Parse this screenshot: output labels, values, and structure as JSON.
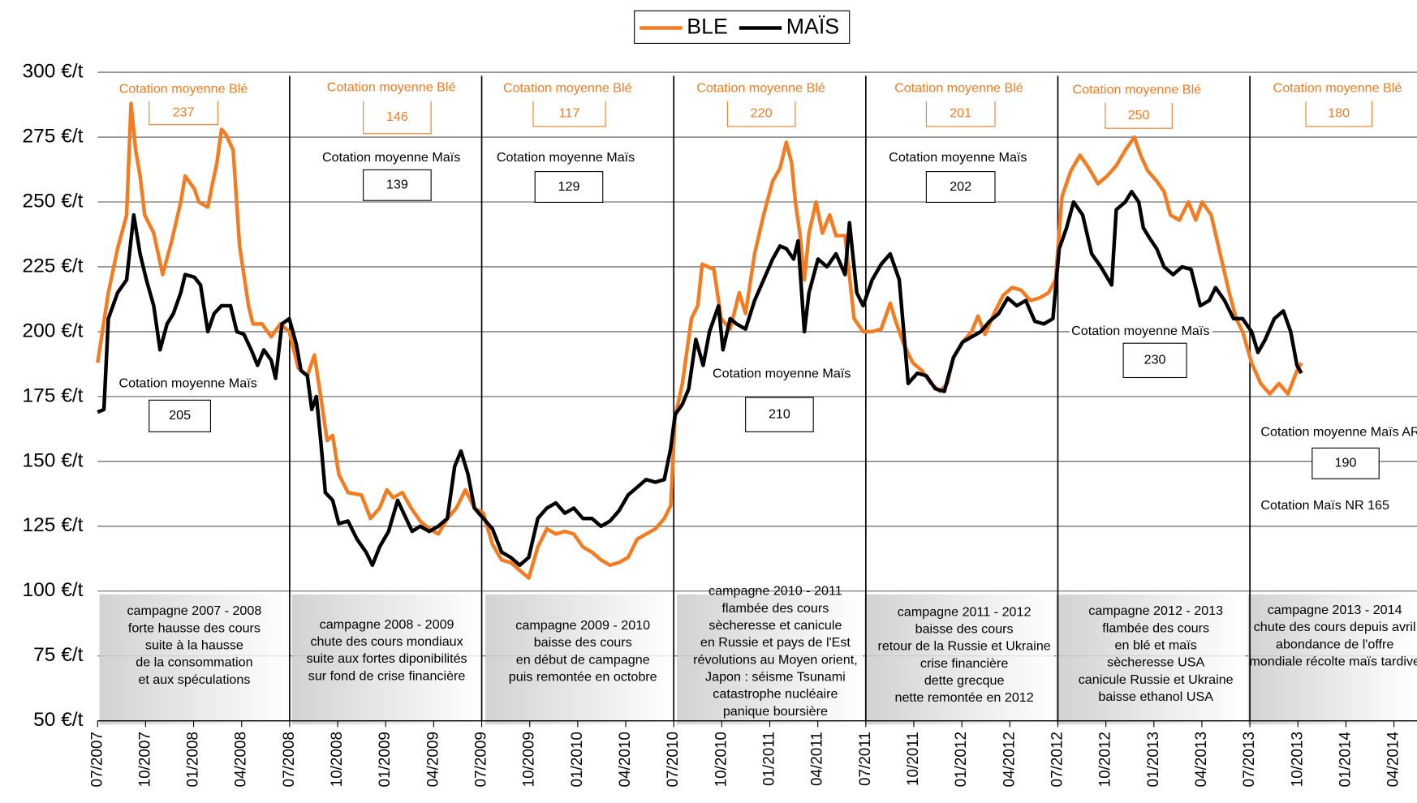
{
  "chart_data": {
    "type": "line",
    "legend": "top",
    "grid": true,
    "xlim": [
      2007.5,
      2014.37
    ],
    "xticks": [
      {
        "value": 2007.5,
        "label": "07/2007"
      },
      {
        "value": 2007.75,
        "label": "10/2007"
      },
      {
        "value": 2008,
        "label": "01/2008"
      },
      {
        "value": 2008.25,
        "label": "04/2008"
      },
      {
        "value": 2008.5,
        "label": "07/2008"
      },
      {
        "value": 2008.75,
        "label": "10/2008"
      },
      {
        "value": 2009,
        "label": "01/2009"
      },
      {
        "value": 2009.25,
        "label": "04/2009"
      },
      {
        "value": 2009.5,
        "label": "07/2009"
      },
      {
        "value": 2009.75,
        "label": "10/2009"
      },
      {
        "value": 2010,
        "label": "01/2010"
      },
      {
        "value": 2010.25,
        "label": "04/2010"
      },
      {
        "value": 2010.5,
        "label": "07/2010"
      },
      {
        "value": 2010.75,
        "label": "10/2010"
      },
      {
        "value": 2011,
        "label": "01/2011"
      },
      {
        "value": 2011.25,
        "label": "04/2011"
      },
      {
        "value": 2011.5,
        "label": "07/2011"
      },
      {
        "value": 2011.75,
        "label": "10/2011"
      },
      {
        "value": 2012,
        "label": "01/2012"
      },
      {
        "value": 2012.25,
        "label": "04/2012"
      },
      {
        "value": 2012.5,
        "label": "07/2012"
      },
      {
        "value": 2012.75,
        "label": "10/2012"
      },
      {
        "value": 2013,
        "label": "01/2013"
      },
      {
        "value": 2013.25,
        "label": "04/2013"
      },
      {
        "value": 2013.5,
        "label": "07/2013"
      },
      {
        "value": 2013.75,
        "label": "10/2013"
      },
      {
        "value": 2014,
        "label": "01/2014"
      },
      {
        "value": 2014.25,
        "label": "04/2014"
      }
    ],
    "ylim": [
      50,
      300
    ],
    "yticks": [
      {
        "value": 50,
        "label": "50 €/t"
      },
      {
        "value": 75,
        "label": "75 €/t"
      },
      {
        "value": 100,
        "label": "100 €/t"
      },
      {
        "value": 125,
        "label": "125 €/t"
      },
      {
        "value": 150,
        "label": "150 €/t"
      },
      {
        "value": 175,
        "label": "175 €/t"
      },
      {
        "value": 200,
        "label": "200 €/t"
      },
      {
        "value": 225,
        "label": "225 €/t"
      },
      {
        "value": 250,
        "label": "250 €/t"
      },
      {
        "value": 275,
        "label": "275 €/t"
      },
      {
        "value": 300,
        "label": "300 €/t"
      }
    ],
    "series": [
      {
        "name": "BLE",
        "color": "#f47b20",
        "x": [
          2007.5,
          2007.556,
          2007.604,
          2007.651,
          2007.674,
          2007.698,
          2007.721,
          2007.745,
          2007.792,
          2007.839,
          2007.886,
          2007.933,
          2007.956,
          2008.004,
          2008.027,
          2008.074,
          2008.098,
          2008.121,
          2008.145,
          2008.168,
          2008.206,
          2008.239,
          2008.286,
          2008.309,
          2008.356,
          2008.404,
          2008.451,
          2008.498,
          2008.545,
          2008.592,
          2008.629,
          2008.662,
          2008.695,
          2008.724,
          2008.756,
          2008.804,
          2008.874,
          2008.921,
          2008.968,
          2009.006,
          2009.039,
          2009.086,
          2009.133,
          2009.18,
          2009.227,
          2009.274,
          2009.321,
          2009.368,
          2009.415,
          2009.462,
          2009.509,
          2009.556,
          2009.604,
          2009.651,
          2009.698,
          2009.745,
          2009.792,
          2009.839,
          2009.886,
          2009.933,
          2009.98,
          2010.027,
          2010.074,
          2010.121,
          2010.168,
          2010.215,
          2010.262,
          2010.309,
          2010.356,
          2010.404,
          2010.451,
          2010.484,
          2010.507,
          2010.545,
          2010.592,
          2010.625,
          2010.648,
          2010.709,
          2010.747,
          2010.794,
          2010.841,
          2010.874,
          2010.921,
          2010.968,
          2011.015,
          2011.053,
          2011.086,
          2011.114,
          2011.133,
          2011.156,
          2011.18,
          2011.204,
          2011.241,
          2011.274,
          2011.312,
          2011.345,
          2011.392,
          2011.439,
          2011.486,
          2011.533,
          2011.58,
          2011.627,
          2011.651,
          2011.698,
          2011.745,
          2011.792,
          2011.839,
          2011.886,
          2011.924,
          2011.956,
          2012.004,
          2012.051,
          2012.084,
          2012.121,
          2012.168,
          2012.215,
          2012.262,
          2012.309,
          2012.356,
          2012.404,
          2012.451,
          2012.488,
          2012.521,
          2012.568,
          2012.615,
          2012.662,
          2012.709,
          2012.756,
          2012.804,
          2012.851,
          2012.898,
          2012.931,
          2012.968,
          2013.015,
          2013.053,
          2013.086,
          2013.133,
          2013.18,
          2013.218,
          2013.251,
          2013.298,
          2013.345,
          2013.392,
          2013.429,
          2013.462,
          2013.509,
          2013.556,
          2013.604,
          2013.651,
          2013.698,
          2013.745,
          2013.768
        ],
        "values": [
          188,
          215,
          232,
          245,
          288,
          270,
          260,
          245,
          238,
          222,
          235,
          250,
          260,
          255,
          250,
          248,
          257,
          265,
          278,
          276,
          270,
          233,
          210,
          203,
          203,
          198,
          203,
          200,
          186,
          183,
          191,
          175,
          158,
          160,
          145,
          138,
          137,
          128,
          132,
          139,
          136,
          138,
          132,
          127,
          124,
          122,
          128,
          132,
          139,
          132,
          130,
          118,
          112,
          111,
          108,
          105,
          117,
          124,
          122,
          123,
          122,
          117,
          115,
          112,
          110,
          111,
          113,
          120,
          122,
          124,
          128,
          133,
          167,
          180,
          205,
          210,
          226,
          224,
          205,
          201,
          215,
          207,
          230,
          245,
          258,
          263,
          273,
          265,
          250,
          238,
          220,
          238,
          250,
          238,
          245,
          237,
          237,
          205,
          200,
          200,
          201,
          211,
          205,
          195,
          188,
          185,
          180,
          177,
          180,
          190,
          196,
          200,
          206,
          199,
          207,
          214,
          217,
          216,
          212,
          213,
          215,
          220,
          252,
          262,
          268,
          263,
          257,
          260,
          264,
          270,
          275,
          268,
          262,
          258,
          254,
          245,
          243,
          250,
          243,
          250,
          245,
          230,
          215,
          205,
          200,
          188,
          180,
          176,
          180,
          176,
          185,
          188
        ]
      },
      {
        "name": "MAÏS",
        "color": "#000000",
        "x": [
          2007.5,
          2007.533,
          2007.556,
          2007.604,
          2007.651,
          2007.688,
          2007.721,
          2007.754,
          2007.792,
          2007.825,
          2007.862,
          2007.895,
          2007.933,
          2007.956,
          2008.004,
          2008.036,
          2008.074,
          2008.107,
          2008.145,
          2008.192,
          2008.225,
          2008.262,
          2008.3,
          2008.333,
          2008.366,
          2008.404,
          2008.427,
          2008.46,
          2008.498,
          2008.535,
          2008.559,
          2008.592,
          2008.615,
          2008.639,
          2008.662,
          2008.686,
          2008.724,
          2008.756,
          2008.804,
          2008.851,
          2008.898,
          2008.931,
          2008.968,
          2009.015,
          2009.062,
          2009.1,
          2009.138,
          2009.18,
          2009.227,
          2009.274,
          2009.321,
          2009.359,
          2009.392,
          2009.429,
          2009.462,
          2009.509,
          2009.556,
          2009.604,
          2009.651,
          2009.698,
          2009.745,
          2009.792,
          2009.839,
          2009.886,
          2009.933,
          2009.98,
          2010.027,
          2010.074,
          2010.121,
          2010.168,
          2010.215,
          2010.262,
          2010.309,
          2010.356,
          2010.404,
          2010.451,
          2010.484,
          2010.507,
          2010.545,
          2010.578,
          2010.615,
          2010.653,
          2010.686,
          2010.733,
          2010.756,
          2010.794,
          2010.827,
          2010.874,
          2010.921,
          2010.968,
          2011.015,
          2011.053,
          2011.086,
          2011.124,
          2011.147,
          2011.18,
          2011.204,
          2011.251,
          2011.298,
          2011.345,
          2011.392,
          2011.415,
          2011.453,
          2011.486,
          2011.533,
          2011.58,
          2011.627,
          2011.674,
          2011.721,
          2011.768,
          2011.815,
          2011.862,
          2011.909,
          2011.956,
          2012.004,
          2012.051,
          2012.098,
          2012.145,
          2012.192,
          2012.239,
          2012.286,
          2012.333,
          2012.38,
          2012.427,
          2012.474,
          2012.507,
          2012.545,
          2012.582,
          2012.629,
          2012.676,
          2012.724,
          2012.78,
          2012.804,
          2012.851,
          2012.884,
          2012.921,
          2012.945,
          2012.978,
          2013.015,
          2013.053,
          2013.1,
          2013.147,
          2013.194,
          2013.241,
          2013.288,
          2013.321,
          2013.368,
          2013.415,
          2013.462,
          2013.509,
          2013.542,
          2013.58,
          2013.627,
          2013.674,
          2013.712,
          2013.745,
          2013.768
        ],
        "values": [
          169,
          170,
          205,
          215,
          220,
          245,
          230,
          220,
          210,
          193,
          203,
          207,
          215,
          222,
          221,
          218,
          200,
          207,
          210,
          210,
          200,
          199,
          193,
          187,
          193,
          189,
          182,
          203,
          205,
          195,
          185,
          183,
          170,
          175,
          158,
          138,
          135,
          126,
          127,
          120,
          115,
          110,
          117,
          123,
          135,
          129,
          123,
          125,
          123,
          125,
          128,
          148,
          154,
          145,
          132,
          128,
          124,
          115,
          113,
          110,
          113,
          128,
          132,
          134,
          130,
          132,
          128,
          128,
          125,
          127,
          131,
          137,
          140,
          143,
          142,
          143,
          155,
          168,
          172,
          178,
          197,
          187,
          200,
          210,
          193,
          205,
          203,
          201,
          212,
          220,
          228,
          233,
          232,
          228,
          235,
          200,
          215,
          228,
          225,
          230,
          222,
          242,
          215,
          210,
          220,
          226,
          230,
          220,
          180,
          184,
          183,
          178,
          177,
          190,
          196,
          198,
          200,
          204,
          207,
          213,
          210,
          212,
          204,
          203,
          205,
          232,
          240,
          250,
          245,
          230,
          225,
          218,
          247,
          250,
          254,
          250,
          240,
          236,
          232,
          225,
          222,
          225,
          224,
          210,
          212,
          217,
          212,
          205,
          205,
          200,
          192,
          197,
          205,
          208,
          200,
          187,
          184
        ]
      }
    ],
    "campaigns": [
      {
        "text": [
          "campagne 2007 - 2008",
          "forte hausse des cours",
          "suite à la hausse",
          "de la consommation",
          "et aux spéculations"
        ],
        "wheat_label": "Cotation moyenne Blé",
        "wheat_value": 237,
        "maize_label": "Cotation moyenne Maïs",
        "maize_value": 205
      },
      {
        "text": [
          "campagne 2008 - 2009",
          "chute des cours mondiaux",
          "suite aux fortes diponibilités",
          "sur fond de crise financière"
        ],
        "wheat_label": "Cotation moyenne Blé",
        "wheat_value": 146,
        "maize_label": "Cotation moyenne Maïs",
        "maize_value": 139
      },
      {
        "text": [
          "campagne 2009 - 2010",
          "baisse des cours",
          "en début de campagne",
          "puis remontée en octobre"
        ],
        "wheat_label": "Cotation moyenne Blé",
        "wheat_value": 117,
        "maize_label": "Cotation moyenne Maïs",
        "maize_value": 129
      },
      {
        "text": [
          "campagne 2010 - 2011",
          "flambée des cours",
          "sècheresse et canicule",
          "en Russie et pays de l'Est",
          "révolutions au Moyen orient,",
          "Japon : séisme Tsunami",
          "catastrophe nucléaire",
          "panique boursière"
        ],
        "wheat_label": "Cotation moyenne Blé",
        "wheat_value": 220,
        "maize_label": "Cotation moyenne Maïs",
        "maize_value": 210
      },
      {
        "text": [
          "campagne 2011 - 2012",
          "baisse des cours",
          "retour de la Russie et Ukraine",
          "crise financière",
          "dette grecque",
          "nette remontée en 2012"
        ],
        "wheat_label": "Cotation moyenne Blé",
        "wheat_value": 201,
        "maize_label": "Cotation moyenne Maïs",
        "maize_value": 202
      },
      {
        "text": [
          "campagne 2012 - 2013",
          "flambée des cours",
          "en blé et maïs",
          "sècheresse USA",
          "canicule Russie et Ukraine",
          "baisse ethanol USA"
        ],
        "wheat_label": "Cotation moyenne Blé",
        "wheat_value": 250,
        "maize_label": "Cotation moyenne Maïs",
        "maize_value": 230
      },
      {
        "text": [
          "campagne 2013 - 2014",
          "chute des cours depuis avril",
          "abondance de l'offre",
          "mondiale récolte maïs tardive"
        ],
        "wheat_label": "Cotation moyenne Blé",
        "wheat_value": 180,
        "maize_label": "Cotation moyenne Maïs AR",
        "maize_value": 190,
        "note": "Cotation Maïs NR 165"
      }
    ]
  }
}
